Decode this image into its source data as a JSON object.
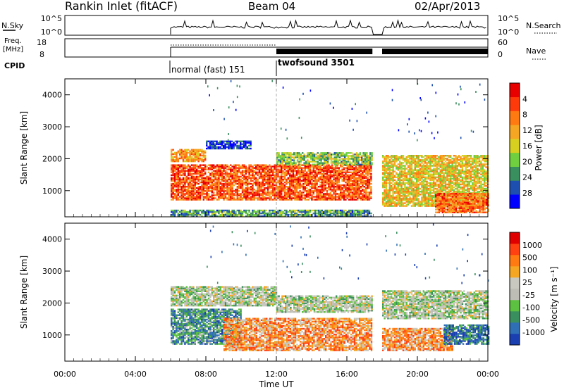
{
  "header": {
    "station": "Rankin Inlet (fitACF)",
    "beam": "Beam 04",
    "date": "02/Apr/2013"
  },
  "summary": {
    "nsky_label": "N.Sky",
    "nsky_ticks": [
      "10^5",
      "10^0"
    ],
    "nsearch_label": "N.Search",
    "freq_label_line1": "Freq.",
    "freq_label_line2": "[MHz]",
    "freq_ticks": [
      "18",
      "8"
    ],
    "nave_label": "Nave",
    "nave_ticks": [
      "60",
      "0"
    ],
    "cpid_label": "CPID",
    "cpid_modes": [
      {
        "name": "normal (fast) 151",
        "start_hour": 6.0,
        "end_hour": 12.0
      },
      {
        "name": "twofsound 3501",
        "start_hour": 12.0,
        "end_hour": 24.0
      }
    ]
  },
  "chart_data": [
    {
      "type": "heatmap",
      "name": "power",
      "ylabel": "Slant Range [km]",
      "xlim": [
        0,
        24
      ],
      "ylim": [
        180,
        4500
      ],
      "yticks": [
        "1000",
        "2000",
        "3000",
        "4000"
      ],
      "colorbar_label": "Power [dB]",
      "colorbar_ticks": [
        "4",
        "8",
        "12",
        "16",
        "20",
        "24",
        "28"
      ],
      "colorbar_colors": [
        "#0000ff",
        "#1c4fb0",
        "#3a8f5e",
        "#6fcf3f",
        "#d8d020",
        "#f5a623",
        "#ff7a10",
        "#ff3a0a",
        "#e80000"
      ],
      "bands": [
        {
          "start": 6.0,
          "end": 8.0,
          "low": 1900,
          "high": 2300,
          "level": 0.65
        },
        {
          "start": 8.0,
          "end": 10.5,
          "low": 2300,
          "high": 2550,
          "level": 0.1
        },
        {
          "start": 6.0,
          "end": 17.4,
          "low": 700,
          "high": 1800,
          "level": 0.8
        },
        {
          "start": 12.0,
          "end": 17.4,
          "low": 1800,
          "high": 2200,
          "level": 0.4
        },
        {
          "start": 18.0,
          "end": 24.0,
          "low": 500,
          "high": 2100,
          "level": 0.55
        },
        {
          "start": 21.0,
          "end": 24.0,
          "low": 300,
          "high": 900,
          "level": 0.75
        },
        {
          "start": 6.0,
          "end": 17.4,
          "low": 180,
          "high": 400,
          "level": 0.3
        }
      ]
    },
    {
      "type": "heatmap",
      "name": "velocity",
      "xlabel": "Time UT",
      "ylabel": "Slant Range [km]",
      "xlim": [
        0,
        24
      ],
      "ylim": [
        180,
        4500
      ],
      "xticks": [
        "00:00",
        "04:00",
        "08:00",
        "12:00",
        "16:00",
        "20:00",
        "00:00"
      ],
      "yticks": [
        "1000",
        "2000",
        "3000",
        "4000"
      ],
      "colorbar_label": "Velocity [m s⁻¹]",
      "colorbar_ticks": [
        "1000",
        "500",
        "100",
        "25",
        "-25",
        "-100",
        "-500",
        "-1000"
      ],
      "colorbar_colors": [
        "#1a3fb0",
        "#2f6fb5",
        "#3a8f5e",
        "#5cc040",
        "#bdbdb5",
        "#c8c8c0",
        "#f5a623",
        "#ff7a10",
        "#ff4010",
        "#e00000"
      ],
      "bands": [
        {
          "start": 6.0,
          "end": 12.0,
          "low": 1900,
          "high": 2500,
          "level": 0.45
        },
        {
          "start": 12.0,
          "end": 17.4,
          "low": 1700,
          "high": 2200,
          "level": 0.45
        },
        {
          "start": 6.0,
          "end": 10.0,
          "low": 700,
          "high": 1800,
          "level": 0.25
        },
        {
          "start": 9.0,
          "end": 17.4,
          "low": 500,
          "high": 1500,
          "level": 0.7
        },
        {
          "start": 18.0,
          "end": 24.0,
          "low": 1500,
          "high": 2400,
          "level": 0.45
        },
        {
          "start": 18.0,
          "end": 22.0,
          "low": 500,
          "high": 1200,
          "level": 0.7
        },
        {
          "start": 21.5,
          "end": 24.0,
          "low": 700,
          "high": 1300,
          "level": 0.15
        }
      ]
    }
  ]
}
